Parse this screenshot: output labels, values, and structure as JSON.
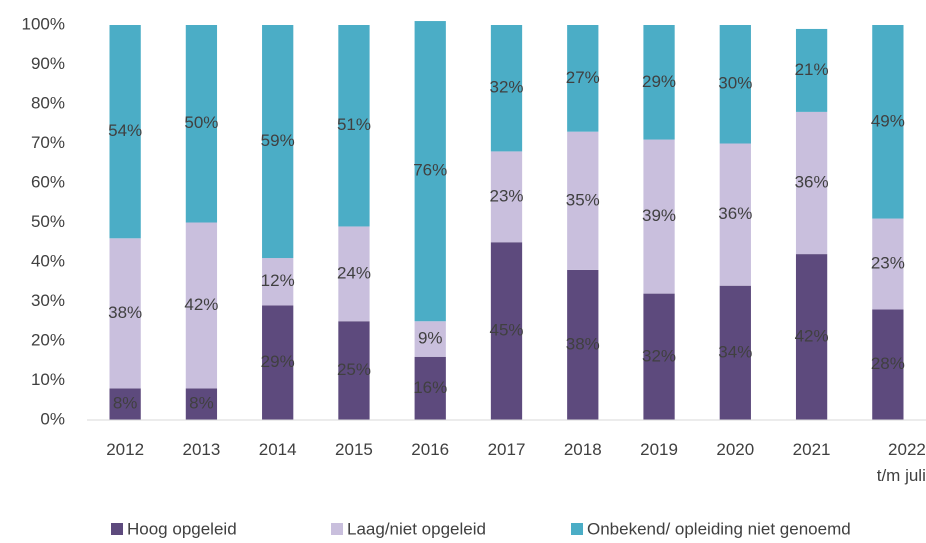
{
  "chart_data": {
    "type": "stacked_bar",
    "categories": [
      "2012",
      "2013",
      "2014",
      "2015",
      "2016",
      "2017",
      "2018",
      "2019",
      "2020",
      "2021",
      "2022\nt/m juli"
    ],
    "series": [
      {
        "name": "Hoog opgeleid",
        "color": "#5d4a7d",
        "values": [
          8,
          8,
          29,
          25,
          16,
          45,
          38,
          32,
          34,
          42,
          28
        ],
        "value_labels": [
          "8%",
          "8%",
          "29%",
          "25%",
          "16%",
          "45%",
          "38%",
          "32%",
          "34%",
          "42%",
          "28%"
        ]
      },
      {
        "name": "Laag/niet opgeleid",
        "color": "#c9bfdd",
        "values": [
          38,
          42,
          12,
          24,
          9,
          23,
          35,
          39,
          36,
          36,
          23
        ],
        "value_labels": [
          "38%",
          "42%",
          "12%",
          "24%",
          "9%",
          "23%",
          "35%",
          "39%",
          "36%",
          "36%",
          "23%"
        ]
      },
      {
        "name": "Onbekend/ opleiding niet genoemd",
        "color": "#4badc6",
        "values": [
          54,
          50,
          59,
          51,
          76,
          32,
          27,
          29,
          30,
          21,
          49
        ],
        "value_labels": [
          "54%",
          "50%",
          "59%",
          "51%",
          "76%",
          "32%",
          "27%",
          "29%",
          "30%",
          "21%",
          "49%"
        ]
      }
    ],
    "ylim": [
      0,
      100
    ],
    "yticks": [
      {
        "value": 0,
        "label": "0%"
      },
      {
        "value": 10,
        "label": "10%"
      },
      {
        "value": 20,
        "label": "20%"
      },
      {
        "value": 30,
        "label": "30%"
      },
      {
        "value": 40,
        "label": "40%"
      },
      {
        "value": 50,
        "label": "50%"
      },
      {
        "value": 60,
        "label": "60%"
      },
      {
        "value": 70,
        "label": "70%"
      },
      {
        "value": 80,
        "label": "80%"
      },
      {
        "value": 90,
        "label": "90%"
      },
      {
        "value": 100,
        "label": "100%"
      }
    ],
    "grid": false,
    "legend": "bottom"
  }
}
